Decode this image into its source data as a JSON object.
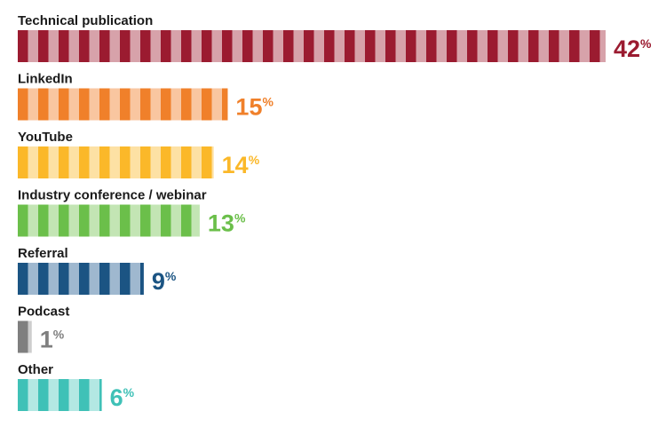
{
  "chart_data": {
    "type": "bar",
    "orientation": "horizontal",
    "categories": [
      "Technical publication",
      "LinkedIn",
      "YouTube",
      "Industry conference / webinar",
      "Referral",
      "Podcast",
      "Other"
    ],
    "values": [
      42,
      15,
      14,
      13,
      9,
      1,
      6
    ],
    "value_labels": [
      "42",
      "15",
      "14",
      "13",
      "9",
      "1",
      "6"
    ],
    "unit": "%",
    "colors": [
      {
        "dark": "#9b1b30",
        "light": "#d7a2aa"
      },
      {
        "dark": "#f0802a",
        "light": "#f9c6a0"
      },
      {
        "dark": "#fbb829",
        "light": "#fde1a4"
      },
      {
        "dark": "#6bbf4a",
        "light": "#c3e5b4"
      },
      {
        "dark": "#1b5483",
        "light": "#9fb8cf"
      },
      {
        "dark": "#7f7f7f",
        "light": "#cdcdcd"
      },
      {
        "dark": "#3fc1b7",
        "light": "#b3e8e3"
      }
    ],
    "title": "",
    "xlabel": "",
    "ylabel": "",
    "xlim": [
      0,
      42
    ],
    "grid": false,
    "legend": "none"
  }
}
